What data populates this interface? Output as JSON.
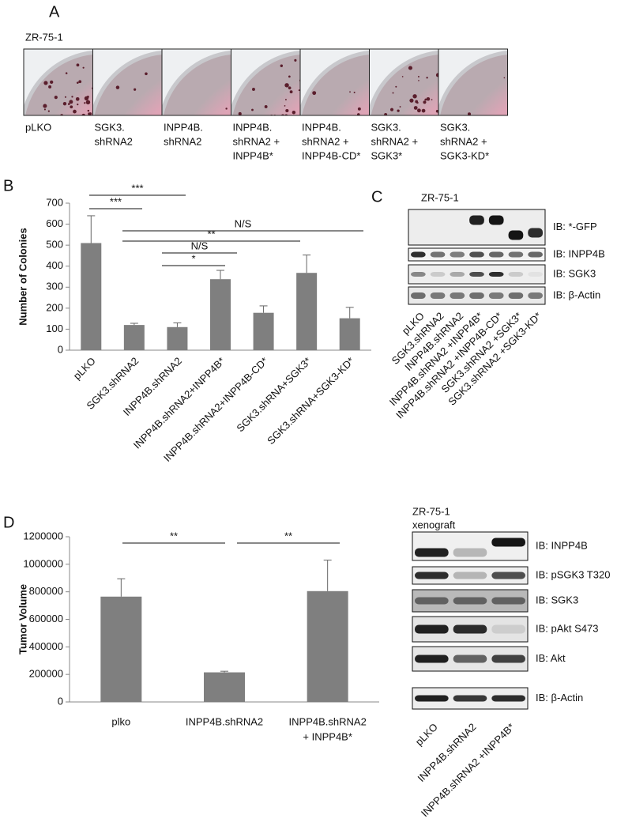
{
  "panel_a": {
    "label": "A",
    "cell_line": "ZR-75-1",
    "plates": [
      [
        "pLKO"
      ],
      [
        "SGK3.",
        "shRNA2"
      ],
      [
        "INPP4B.",
        "shRNA2"
      ],
      [
        "INPP4B.",
        "shRNA2 +",
        "INPP4B*"
      ],
      [
        "INPP4B.",
        "shRNA2 +",
        "INPP4B-CD*"
      ],
      [
        "SGK3.",
        "shRNA2 +",
        "SGK3*"
      ],
      [
        "SGK3.",
        "shRNA2 +",
        "SGK3-KD*"
      ]
    ]
  },
  "chart_data": [
    {
      "type": "bar",
      "panel": "B",
      "y_label": "Number of Colonies",
      "categories": [
        "pLKO",
        "SGK3.shRNA2",
        "INPP4B.shRNA2",
        "INPP4B.shRNA2+INPP4B*",
        "INPP4B.shRNA2+INPP4B-CD*",
        "SGK3.shRNA+SGK3*",
        "SGK3.shRNA+SGK3-KD*"
      ],
      "values": [
        510,
        120,
        110,
        338,
        178,
        368,
        152
      ],
      "errors": [
        130,
        8,
        20,
        42,
        33,
        85,
        52
      ],
      "color": "#7f7f7f",
      "ylim": [
        0,
        700
      ],
      "yticks": [
        0,
        100,
        200,
        300,
        400,
        500,
        600,
        700
      ],
      "annotations": [
        "***",
        "***",
        "N/S",
        "**",
        "N/S",
        "*"
      ]
    },
    {
      "type": "bar",
      "panel": "D",
      "y_label": "Tumor Volume",
      "categories": [
        [
          "plko"
        ],
        [
          "INPP4B.shRNA2"
        ],
        [
          "INPP4B.shRNA2",
          "+ INPP4B*"
        ]
      ],
      "values": [
        765000,
        215000,
        805000
      ],
      "errors": [
        130000,
        8000,
        225000
      ],
      "color": "#7f7f7f",
      "ylim": [
        0,
        1200000
      ],
      "yticks": [
        0,
        200000,
        400000,
        600000,
        800000,
        1000000,
        1200000
      ],
      "annotations": [
        "**",
        "**"
      ]
    }
  ],
  "blot_c": {
    "label": "C",
    "title": [
      "ZR-75-1"
    ],
    "rows": [
      "IB: *-GFP",
      "IB: INPP4B",
      "IB: SGK3",
      "IB: β-Actin"
    ],
    "lanes": [
      "pLKO",
      "SGK3.shRNA2",
      "INPP4B.shRNA2",
      "INPP4B.shRNA2 +INPP4B*",
      "INPP4B.shRNA2 +INPP4B-CD*",
      "SGK3.shRNA2 +SGK3*",
      "SGK3.shRNA2 +SGK3-KD*"
    ]
  },
  "blot_d": {
    "title": [
      "ZR-75-1",
      "xenograft"
    ],
    "rows": [
      "IB: INPP4B",
      "IB: pSGK3 T320",
      "IB: SGK3",
      "IB: pAkt S473",
      "IB: Akt",
      "IB: β-Actin"
    ],
    "lanes": [
      "pLKO",
      "INPP4B.shRNA2",
      "INPP4B.shRNA2 +INPP4B*"
    ]
  }
}
